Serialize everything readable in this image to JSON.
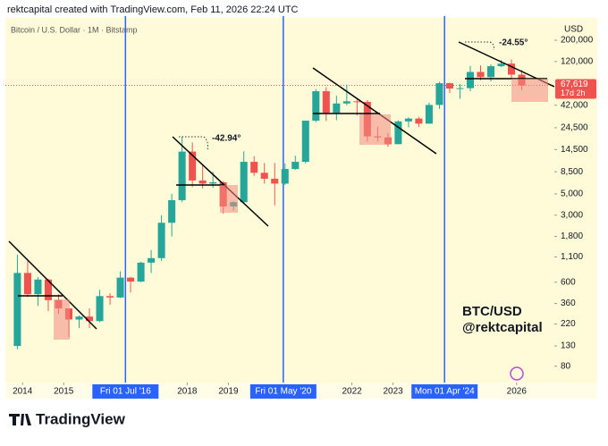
{
  "header": "rektcapital created with TradingView.com, Feb 11, 2026 22:24 UTC",
  "brand": "TradingView",
  "chart_data": {
    "type": "candlestick",
    "title": "Bitcoin / U.S. Dollar · 1M · Bitstamp",
    "currency": "USD",
    "log_scale": true,
    "up_color": "#26a69a",
    "down_color": "#ef5350",
    "x": [
      "2013-10",
      "2014-01",
      "2014-04",
      "2014-07",
      "2014-10",
      "2015-01",
      "2015-04",
      "2015-07",
      "2015-10",
      "2016-01",
      "2016-04",
      "2016-07",
      "2016-10",
      "2017-01",
      "2017-04",
      "2017-07",
      "2017-10",
      "2018-01",
      "2018-04",
      "2018-07",
      "2018-10",
      "2019-01",
      "2019-04",
      "2019-07",
      "2019-10",
      "2020-01",
      "2020-04",
      "2020-07",
      "2020-10",
      "2021-01",
      "2021-04",
      "2021-07",
      "2021-10",
      "2022-01",
      "2022-04",
      "2022-07",
      "2022-10",
      "2023-01",
      "2023-04",
      "2023-07",
      "2023-10",
      "2024-01",
      "2024-04",
      "2024-07",
      "2024-10",
      "2025-01",
      "2025-04",
      "2025-07",
      "2025-10",
      "2026-01"
    ],
    "open": [
      130,
      750,
      450,
      640,
      390,
      320,
      245,
      263,
      236,
      430,
      416,
      670,
      610,
      960,
      1070,
      2500,
      4300,
      13800,
      6900,
      6400,
      6600,
      3700,
      4100,
      10800,
      8300,
      7200,
      6400,
      9100,
      10800,
      29000,
      58800,
      35000,
      43800,
      46200,
      45500,
      19900,
      19400,
      16500,
      28500,
      30500,
      27000,
      42300,
      71300,
      62700,
      63300,
      93400,
      82500,
      107200,
      114000,
      87500
    ],
    "high": [
      1160,
      1000,
      680,
      650,
      450,
      320,
      270,
      320,
      500,
      460,
      780,
      680,
      980,
      1300,
      3000,
      5000,
      19700,
      17200,
      9900,
      8500,
      6800,
      4200,
      13900,
      12300,
      10500,
      10500,
      10400,
      12500,
      29000,
      61800,
      64900,
      52900,
      69000,
      48200,
      47500,
      25200,
      21500,
      29200,
      31400,
      31800,
      44700,
      73800,
      72000,
      70000,
      108000,
      109500,
      111900,
      124500,
      126000,
      97900
    ],
    "low": [
      120,
      420,
      340,
      300,
      280,
      160,
      200,
      200,
      230,
      350,
      410,
      470,
      600,
      750,
      1000,
      1800,
      4100,
      5900,
      5700,
      5800,
      3100,
      3350,
      4050,
      7700,
      6400,
      3800,
      6200,
      8900,
      10400,
      28000,
      28800,
      29300,
      42000,
      32900,
      17600,
      17600,
      15500,
      16500,
      24800,
      24900,
      26900,
      38500,
      56500,
      49000,
      58900,
      76600,
      74500,
      105000,
      80500,
      60000
    ],
    "close": [
      750,
      450,
      640,
      390,
      320,
      245,
      263,
      236,
      430,
      416,
      670,
      610,
      960,
      1070,
      2500,
      4300,
      13800,
      6900,
      6400,
      6600,
      3700,
      4100,
      10800,
      8300,
      7200,
      6400,
      9100,
      10800,
      29000,
      58800,
      35000,
      43800,
      46200,
      45500,
      19900,
      19400,
      16500,
      28500,
      30500,
      27000,
      42300,
      71300,
      62700,
      63300,
      93400,
      82500,
      107200,
      114000,
      87500,
      67619
    ],
    "xlim": [
      "2013-08",
      "2026-12"
    ],
    "xticks": [
      {
        "value": "2014-01",
        "label": "2014"
      },
      {
        "value": "2015-01",
        "label": "2015"
      },
      {
        "value": "2018-01",
        "label": "2018"
      },
      {
        "value": "2019-01",
        "label": "2019"
      },
      {
        "value": "2022-01",
        "label": "2022"
      },
      {
        "value": "2023-01",
        "label": "2023"
      },
      {
        "value": "2026-01",
        "label": "2026"
      }
    ],
    "ylim": [
      54,
      342000
    ],
    "yticks": [
      {
        "value": 200000,
        "label": "200,000"
      },
      {
        "value": 120000,
        "label": "120,000"
      },
      {
        "value": 42000,
        "label": "42,000"
      },
      {
        "value": 24500,
        "label": "24,500"
      },
      {
        "value": 14500,
        "label": "14,500"
      },
      {
        "value": 8500,
        "label": "8,500"
      },
      {
        "value": 5000,
        "label": "5,000"
      },
      {
        "value": 3000,
        "label": "3,000"
      },
      {
        "value": 1800,
        "label": "1,800"
      },
      {
        "value": 1100,
        "label": "1,100"
      },
      600,
      360,
      220,
      130,
      80
    ],
    "vlines": [
      {
        "value": "2016-07",
        "label": "Fri 01 Jul '16"
      },
      {
        "value": "2020-05",
        "label": "Fri 01 May '20"
      },
      {
        "value": "2024-04",
        "label": "Mon 01 Apr '24"
      }
    ],
    "vline_color": "#2962ff",
    "last_price": {
      "value": 67619,
      "label": "67,619"
    },
    "countdown": "17d 2h",
    "annotations": [
      "-42.94°",
      "-24.55°"
    ],
    "watermark": [
      "BTC/USD",
      "@rektcapital"
    ]
  }
}
